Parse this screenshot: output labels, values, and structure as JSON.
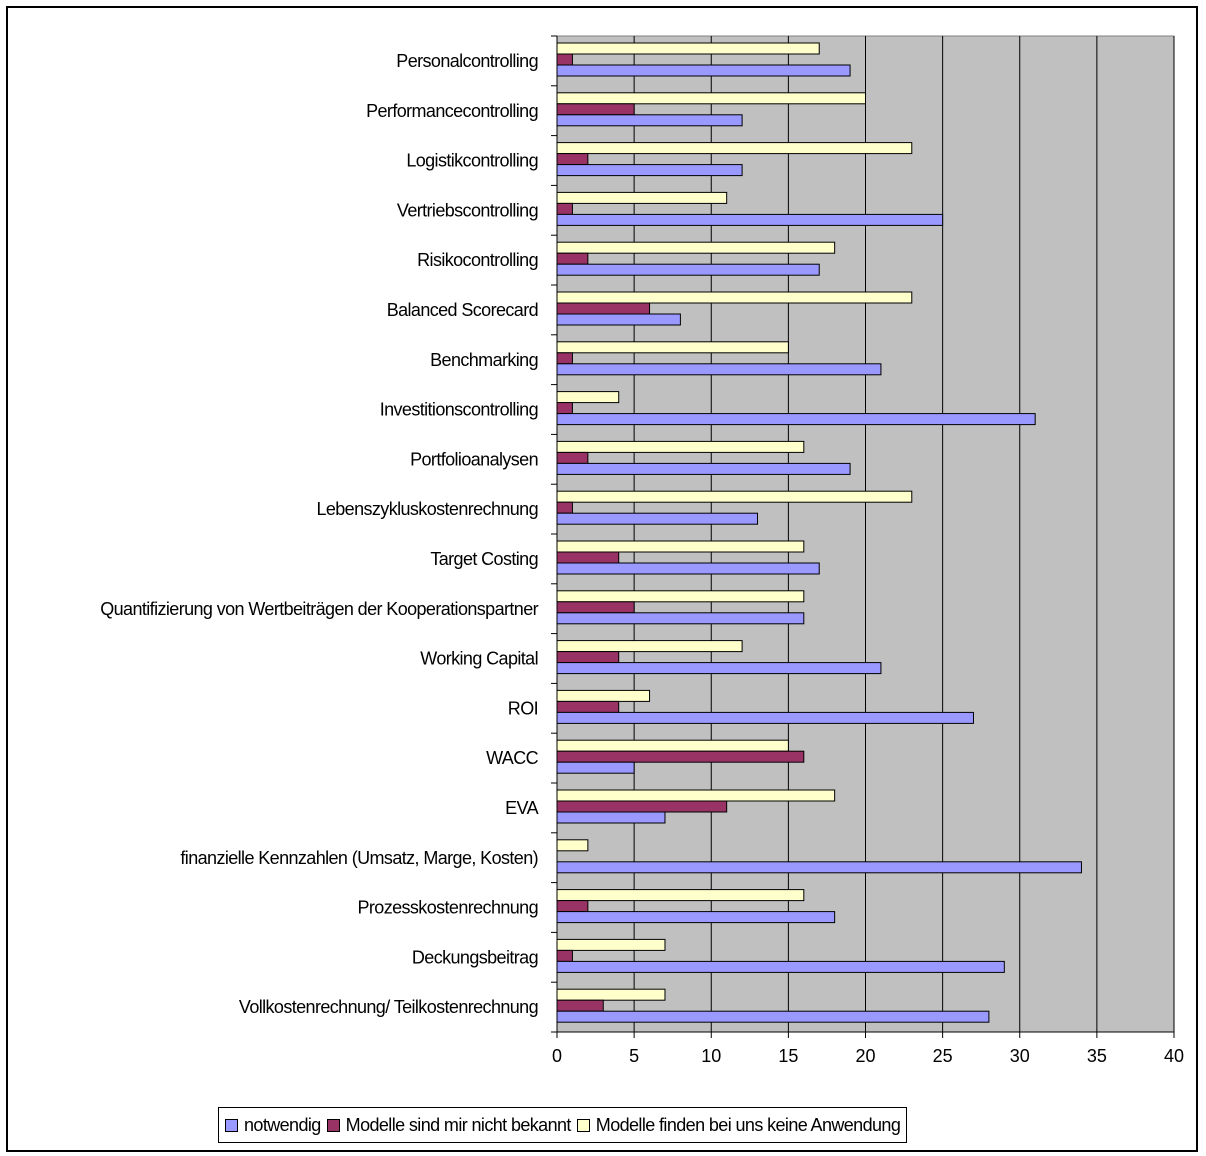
{
  "chart_data": {
    "type": "bar",
    "orientation": "horizontal",
    "title": "",
    "xlabel": "",
    "ylabel": "",
    "xlim": [
      0,
      40
    ],
    "x_ticks": [
      0,
      5,
      10,
      15,
      20,
      25,
      30,
      35,
      40
    ],
    "grid": "vertical",
    "plot_background": "#c0c0c0",
    "legend_position": "bottom",
    "categories": [
      "Personalcontrolling",
      "Performancecontrolling",
      "Logistikcontrolling",
      "Vertriebscontrolling",
      "Risikocontrolling",
      "Balanced Scorecard",
      "Benchmarking",
      "Investitionscontrolling",
      "Portfolioanalysen",
      "Lebenszykluskostenrechnung",
      "Target Costing",
      "Quantifizierung von Wertbeiträgen der Kooperationspartner",
      "Working Capital",
      "ROI",
      "WACC",
      "EVA",
      "finanzielle Kennzahlen (Umsatz, Marge, Kosten)",
      "Prozesskostenrechnung",
      "Deckungsbeitrag",
      "Vollkostenrechnung/ Teilkostenrechnung"
    ],
    "series": [
      {
        "name": "notwendig",
        "color": "#9999ff",
        "values": [
          19,
          12,
          12,
          25,
          17,
          8,
          21,
          31,
          19,
          13,
          17,
          16,
          21,
          27,
          5,
          7,
          34,
          18,
          29,
          28
        ]
      },
      {
        "name": "Modelle sind mir nicht bekannt",
        "color": "#993366",
        "values": [
          1,
          5,
          2,
          1,
          2,
          6,
          1,
          1,
          2,
          1,
          4,
          5,
          4,
          4,
          16,
          11,
          0,
          2,
          1,
          3
        ]
      },
      {
        "name": "Modelle finden bei uns keine Anwendung",
        "color": "#ffffcc",
        "values": [
          17,
          20,
          23,
          11,
          18,
          23,
          15,
          4,
          16,
          23,
          16,
          16,
          12,
          6,
          15,
          18,
          2,
          16,
          7,
          7
        ]
      }
    ]
  }
}
